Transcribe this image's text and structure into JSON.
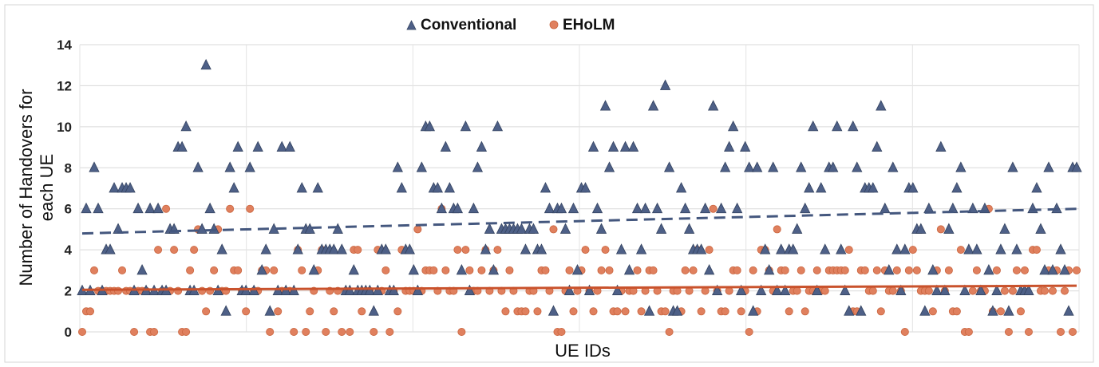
{
  "chart_data": {
    "type": "scatter",
    "title": "",
    "xlabel": "UE IDs",
    "ylabel_lines": [
      "Number of Handovers for",
      "each UE"
    ],
    "ylim": [
      0,
      14
    ],
    "yticks": [
      "0",
      "2",
      "4",
      "6",
      "8",
      "10",
      "12",
      "14"
    ],
    "grid": true,
    "legend_position": "top",
    "n_ues": 250,
    "series": [
      {
        "name": "Conventional",
        "marker": "triangle",
        "color": "#4e6087",
        "trendline": {
          "style": "dashed",
          "color": "#44577e",
          "start": 4.8,
          "end": 6.0
        },
        "values": [
          2,
          6,
          2,
          8,
          6,
          2,
          4,
          4,
          7,
          5,
          7,
          7,
          7,
          2,
          6,
          3,
          2,
          6,
          2,
          6,
          2,
          2,
          5,
          5,
          9,
          9,
          10,
          2,
          2,
          8,
          5,
          13,
          6,
          5,
          2,
          4,
          1,
          8,
          7,
          9,
          2,
          2,
          8,
          2,
          9,
          3,
          4,
          1,
          5,
          2,
          9,
          2,
          9,
          2,
          4,
          7,
          5,
          5,
          3,
          7,
          4,
          4,
          4,
          4,
          5,
          4,
          2,
          2,
          3,
          2,
          2,
          2,
          2,
          1,
          2,
          4,
          4,
          2,
          2,
          8,
          7,
          4,
          4,
          3,
          2,
          8,
          10,
          10,
          7,
          7,
          6,
          9,
          7,
          6,
          6,
          3,
          10,
          2,
          6,
          8,
          9,
          4,
          5,
          3,
          10,
          5,
          5,
          5,
          5,
          5,
          5,
          4,
          5,
          5,
          4,
          4,
          7,
          6,
          1,
          6,
          6,
          5,
          2,
          6,
          3,
          7,
          7,
          2,
          9,
          6,
          5,
          11,
          8,
          9,
          2,
          4,
          9,
          3,
          9,
          6,
          4,
          6,
          1,
          11,
          6,
          5,
          12,
          8,
          1,
          1,
          7,
          6,
          5,
          4,
          4,
          4,
          6,
          3,
          11,
          2,
          6,
          8,
          9,
          10,
          6,
          2,
          9,
          8,
          1,
          8,
          2,
          4,
          3,
          8,
          2,
          4,
          2,
          4,
          4,
          5,
          8,
          6,
          7,
          10,
          2,
          7,
          4,
          8,
          8,
          10,
          4,
          2,
          1,
          10,
          8,
          1,
          7,
          7,
          7,
          9,
          11,
          6,
          3,
          8,
          4,
          2,
          4,
          7,
          7,
          5,
          5,
          1,
          6,
          3,
          2,
          9,
          2,
          5,
          6,
          7,
          8,
          2,
          4,
          6,
          4,
          2,
          6,
          3,
          1,
          2,
          4,
          5,
          1,
          8,
          4,
          2,
          2,
          2,
          6,
          7,
          5,
          3,
          8,
          3,
          6,
          4,
          3,
          1,
          8,
          8
        ]
      },
      {
        "name": "EHoLM",
        "marker": "circle",
        "color": "#e0805e",
        "trendline": {
          "style": "solid",
          "color": "#c9522c",
          "start": 2.05,
          "end": 2.25
        },
        "values": [
          0,
          1,
          1,
          3,
          2,
          2,
          2,
          2,
          2,
          2,
          3,
          2,
          2,
          0,
          2,
          2,
          2,
          0,
          0,
          4,
          2,
          6,
          2,
          4,
          2,
          0,
          0,
          3,
          4,
          5,
          2,
          1,
          2,
          3,
          5,
          2,
          2,
          6,
          3,
          3,
          2,
          1,
          6,
          2,
          2,
          3,
          3,
          0,
          3,
          1,
          2,
          2,
          2,
          0,
          4,
          3,
          0,
          1,
          2,
          3,
          4,
          0,
          2,
          1,
          2,
          0,
          2,
          0,
          4,
          4,
          1,
          2,
          2,
          0,
          4,
          2,
          3,
          0,
          2,
          1,
          4,
          2,
          2,
          2,
          5,
          2,
          3,
          3,
          3,
          2,
          6,
          3,
          2,
          2,
          4,
          0,
          4,
          3,
          2,
          2,
          3,
          4,
          2,
          3,
          4,
          2,
          1,
          3,
          2,
          1,
          1,
          1,
          2,
          2,
          1,
          3,
          3,
          2,
          5,
          0,
          0,
          2,
          3,
          1,
          2,
          3,
          4,
          2,
          1,
          2,
          3,
          4,
          3,
          1,
          1,
          2,
          1,
          2,
          2,
          3,
          1,
          2,
          3,
          3,
          2,
          1,
          1,
          0,
          2,
          2,
          1,
          3,
          2,
          3,
          4,
          1,
          2,
          4,
          6,
          2,
          1,
          1,
          2,
          3,
          3,
          1,
          2,
          0,
          3,
          1,
          4,
          4,
          3,
          2,
          5,
          3,
          3,
          1,
          2,
          2,
          3,
          1,
          2,
          2,
          3,
          2,
          2,
          3,
          3,
          3,
          3,
          3,
          4,
          1,
          1,
          3,
          3,
          2,
          2,
          3,
          1,
          3,
          2,
          2,
          3,
          2,
          0,
          3,
          4,
          3,
          2,
          2,
          2,
          1,
          3,
          5,
          2,
          3,
          1,
          1,
          4,
          0,
          0,
          2,
          3,
          2,
          2,
          6,
          1,
          3,
          1,
          2,
          0,
          2,
          3,
          1,
          3,
          0,
          4,
          4,
          2,
          2,
          3,
          2,
          3,
          0,
          2,
          3,
          0,
          3
        ]
      }
    ]
  }
}
